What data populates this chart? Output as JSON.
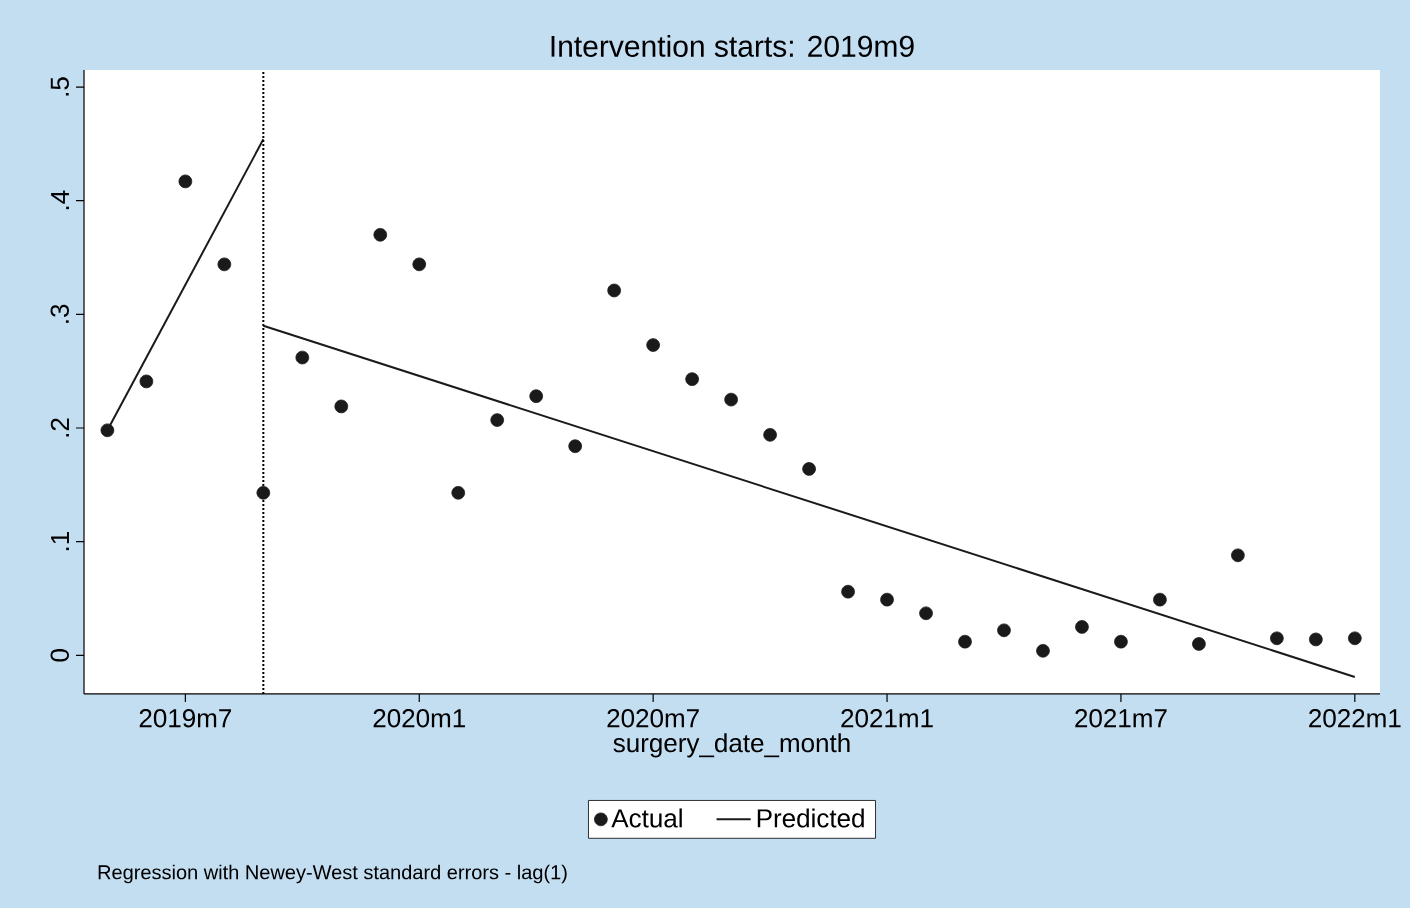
{
  "chart_data": {
    "type": "scatter",
    "title": "Intervention starts: 2019m9",
    "xlabel": "surgery_date_month",
    "annotations": [
      "Regression with Newey-West standard errors - lag(1)"
    ],
    "xlim": [
      "2019-04-13",
      "2022-01-21"
    ],
    "ylim": [
      -0.034,
      0.515
    ],
    "xticks": [
      {
        "value": "2019-07",
        "label": "2019m7"
      },
      {
        "value": "2020-01",
        "label": "2020m1"
      },
      {
        "value": "2020-07",
        "label": "2020m7"
      },
      {
        "value": "2021-01",
        "label": "2021m1"
      },
      {
        "value": "2021-07",
        "label": "2021m7"
      },
      {
        "value": "2022-01",
        "label": "2022m1"
      }
    ],
    "yticks": [
      {
        "value": 0,
        "label": "0"
      },
      {
        "value": 0.1,
        "label": ".1"
      },
      {
        "value": 0.2,
        "label": ".2"
      },
      {
        "value": 0.3,
        "label": ".3"
      },
      {
        "value": 0.4,
        "label": ".4"
      },
      {
        "value": 0.5,
        "label": ".5"
      }
    ],
    "series": [
      {
        "name": "Actual",
        "marker": "circle",
        "color": "#1a1a1a",
        "x": [
          "2019-05",
          "2019-06",
          "2019-07",
          "2019-08",
          "2019-09",
          "2019-10",
          "2019-11",
          "2019-12",
          "2020-01",
          "2020-02",
          "2020-03",
          "2020-04",
          "2020-05",
          "2020-06",
          "2020-07",
          "2020-08",
          "2020-09",
          "2020-10",
          "2020-11",
          "2020-12",
          "2021-01",
          "2021-02",
          "2021-03",
          "2021-04",
          "2021-05",
          "2021-06",
          "2021-07",
          "2021-08",
          "2021-09",
          "2021-10",
          "2021-11",
          "2021-12",
          "2022-01"
        ],
        "values": [
          0.198,
          0.241,
          0.417,
          0.344,
          0.143,
          0.262,
          0.219,
          0.37,
          0.344,
          0.143,
          0.207,
          0.228,
          0.184,
          0.321,
          0.273,
          0.243,
          0.225,
          0.194,
          0.164,
          0.056,
          0.049,
          0.037,
          0.012,
          0.022,
          0.004,
          0.025,
          0.012,
          0.049,
          0.01,
          0.088,
          0.015,
          0.014,
          0.015
        ]
      },
      {
        "name": "Predicted",
        "type": "line",
        "marker": "none",
        "color": "#1a1a1a",
        "x": [
          "2019-05",
          "2019-09"
        ],
        "values": [
          0.198,
          0.454
        ]
      },
      {
        "type": "line",
        "marker": "none",
        "color": "#1a1a1a",
        "x": [
          "2019-09",
          "2022-01"
        ],
        "values": [
          0.29,
          -0.019
        ]
      }
    ],
    "ref_lines": [
      {
        "axis": "x",
        "value": "2019-09",
        "line_style": "dotted"
      }
    ],
    "legend": "bottom",
    "grid": false
  }
}
